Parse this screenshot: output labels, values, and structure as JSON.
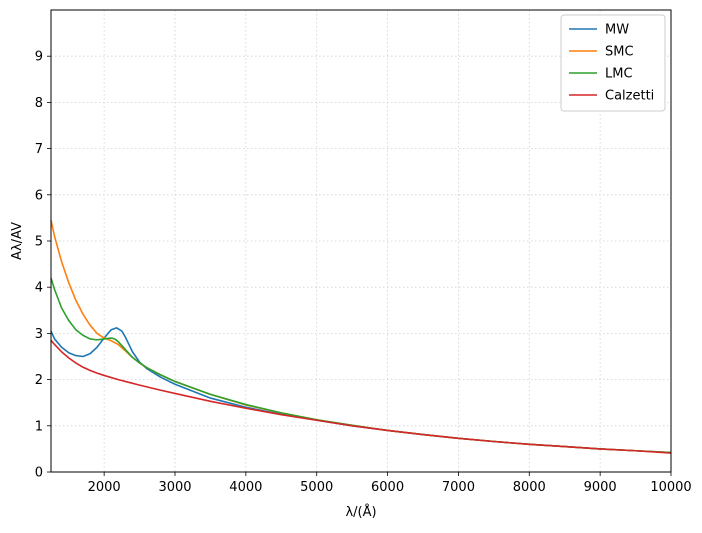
{
  "chart_data": {
    "type": "line",
    "xlabel": "λ/(Å)",
    "ylabel": "Aλ/AV",
    "xlim": [
      1250,
      10000
    ],
    "ylim": [
      0,
      10
    ],
    "xticks": [
      2000,
      3000,
      4000,
      5000,
      6000,
      7000,
      8000,
      9000,
      10000
    ],
    "yticks": [
      0,
      1,
      2,
      3,
      4,
      5,
      6,
      7,
      8,
      9
    ],
    "grid": true,
    "legend_position": "top-right",
    "series": [
      {
        "name": "MW",
        "color": "#1f77b4",
        "points": [
          [
            1250,
            3.05
          ],
          [
            1300,
            2.88
          ],
          [
            1400,
            2.7
          ],
          [
            1500,
            2.58
          ],
          [
            1600,
            2.52
          ],
          [
            1700,
            2.5
          ],
          [
            1800,
            2.56
          ],
          [
            1900,
            2.7
          ],
          [
            2000,
            2.9
          ],
          [
            2100,
            3.08
          ],
          [
            2175,
            3.12
          ],
          [
            2250,
            3.05
          ],
          [
            2300,
            2.92
          ],
          [
            2400,
            2.6
          ],
          [
            2500,
            2.38
          ],
          [
            2600,
            2.24
          ],
          [
            2800,
            2.05
          ],
          [
            3000,
            1.9
          ],
          [
            3500,
            1.6
          ],
          [
            4000,
            1.4
          ],
          [
            4500,
            1.25
          ],
          [
            5000,
            1.12
          ],
          [
            5500,
            1.0
          ],
          [
            6000,
            0.9
          ],
          [
            6500,
            0.81
          ],
          [
            7000,
            0.73
          ],
          [
            7500,
            0.66
          ],
          [
            8000,
            0.6
          ],
          [
            8500,
            0.55
          ],
          [
            9000,
            0.5
          ],
          [
            9500,
            0.46
          ],
          [
            10000,
            0.42
          ]
        ]
      },
      {
        "name": "SMC",
        "color": "#ff7f0e",
        "points": [
          [
            1250,
            5.45
          ],
          [
            1300,
            5.1
          ],
          [
            1400,
            4.55
          ],
          [
            1500,
            4.1
          ],
          [
            1600,
            3.72
          ],
          [
            1700,
            3.42
          ],
          [
            1800,
            3.18
          ],
          [
            1900,
            3.0
          ],
          [
            2000,
            2.9
          ],
          [
            2100,
            2.84
          ],
          [
            2200,
            2.76
          ],
          [
            2300,
            2.62
          ],
          [
            2400,
            2.48
          ],
          [
            2500,
            2.36
          ],
          [
            2600,
            2.26
          ],
          [
            2800,
            2.1
          ],
          [
            3000,
            1.96
          ],
          [
            3500,
            1.68
          ],
          [
            4000,
            1.45
          ],
          [
            4500,
            1.28
          ],
          [
            5000,
            1.13
          ],
          [
            5500,
            1.01
          ],
          [
            6000,
            0.9
          ],
          [
            6500,
            0.81
          ],
          [
            7000,
            0.73
          ],
          [
            7500,
            0.66
          ],
          [
            8000,
            0.6
          ],
          [
            8500,
            0.55
          ],
          [
            9000,
            0.5
          ],
          [
            9500,
            0.46
          ],
          [
            10000,
            0.42
          ]
        ]
      },
      {
        "name": "LMC",
        "color": "#2ca02c",
        "points": [
          [
            1250,
            4.2
          ],
          [
            1300,
            3.95
          ],
          [
            1400,
            3.55
          ],
          [
            1500,
            3.28
          ],
          [
            1600,
            3.08
          ],
          [
            1700,
            2.96
          ],
          [
            1800,
            2.88
          ],
          [
            1900,
            2.86
          ],
          [
            2000,
            2.88
          ],
          [
            2100,
            2.9
          ],
          [
            2150,
            2.88
          ],
          [
            2200,
            2.82
          ],
          [
            2300,
            2.65
          ],
          [
            2400,
            2.48
          ],
          [
            2500,
            2.36
          ],
          [
            2600,
            2.26
          ],
          [
            2800,
            2.1
          ],
          [
            3000,
            1.96
          ],
          [
            3500,
            1.68
          ],
          [
            4000,
            1.46
          ],
          [
            4500,
            1.28
          ],
          [
            5000,
            1.13
          ],
          [
            5500,
            1.01
          ],
          [
            6000,
            0.9
          ],
          [
            6500,
            0.81
          ],
          [
            7000,
            0.73
          ],
          [
            7500,
            0.66
          ],
          [
            8000,
            0.6
          ],
          [
            8500,
            0.55
          ],
          [
            9000,
            0.5
          ],
          [
            9500,
            0.46
          ],
          [
            10000,
            0.42
          ]
        ]
      },
      {
        "name": "Calzetti",
        "color": "#d62728",
        "points": [
          [
            1250,
            2.85
          ],
          [
            1300,
            2.76
          ],
          [
            1400,
            2.6
          ],
          [
            1500,
            2.47
          ],
          [
            1600,
            2.36
          ],
          [
            1700,
            2.27
          ],
          [
            1800,
            2.2
          ],
          [
            1900,
            2.14
          ],
          [
            2000,
            2.09
          ],
          [
            2200,
            2.0
          ],
          [
            2500,
            1.88
          ],
          [
            2800,
            1.77
          ],
          [
            3000,
            1.7
          ],
          [
            3500,
            1.53
          ],
          [
            4000,
            1.38
          ],
          [
            4500,
            1.24
          ],
          [
            5000,
            1.12
          ],
          [
            5500,
            1.0
          ],
          [
            6000,
            0.9
          ],
          [
            6500,
            0.81
          ],
          [
            7000,
            0.73
          ],
          [
            7500,
            0.66
          ],
          [
            8000,
            0.6
          ],
          [
            8500,
            0.55
          ],
          [
            9000,
            0.5
          ],
          [
            9500,
            0.46
          ],
          [
            10000,
            0.41
          ]
        ]
      }
    ]
  }
}
